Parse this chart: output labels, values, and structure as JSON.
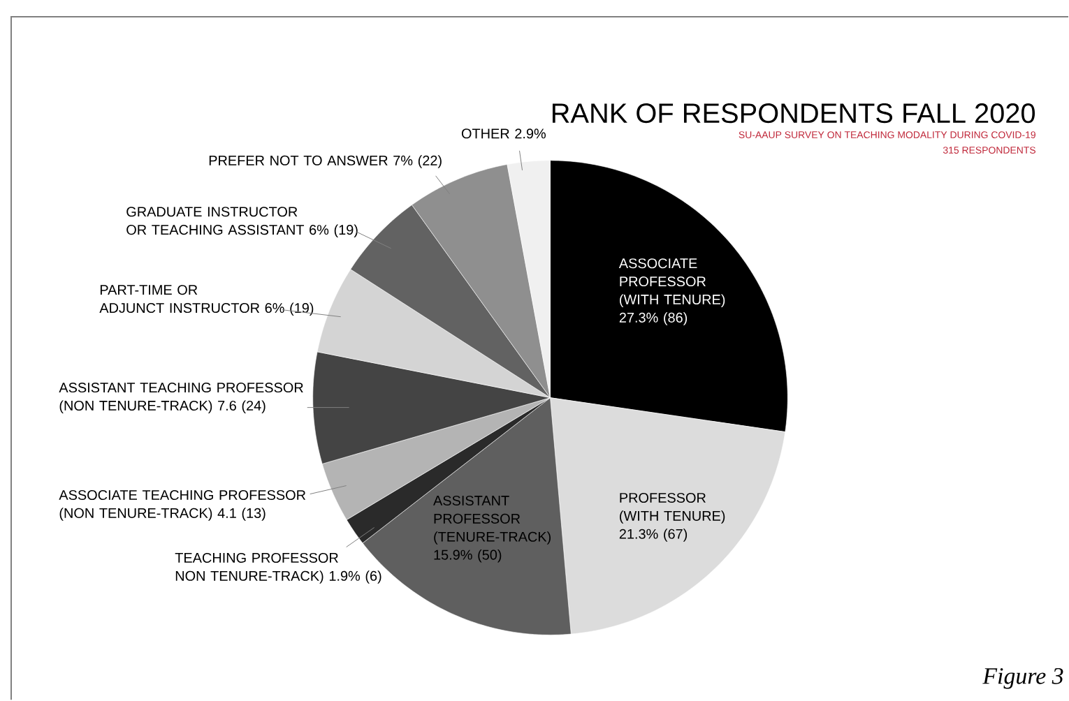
{
  "chart_data": {
    "type": "pie",
    "title": "RANK OF RESPONDENTS FALL 2020",
    "subtitle": "SU-AAUP SURVEY ON TEACHING MODALITY DURING COVID-19",
    "annotations": [
      "315 RESPONDENTS",
      "*Figure 3*"
    ],
    "categories": [
      "ASSOCIATE PROFESSOR (WITH TENURE)",
      "PROFESSOR (WITH TENURE)",
      "ASSISTANT PROFESSOR (TENURE-TRACK)",
      "TEACHING PROFESSOR NON TENURE-TRACK)",
      "ASSOCIATE TEACHING PROFESSOR (NON TENURE-TRACK)",
      "ASSISTANT TEACHING PROFESSOR (NON TENURE-TRACK)",
      "PART-TIME OR ADJUNCT INSTRUCTOR",
      "GRADUATE INSTRUCTOR OR TEACHING ASSISTANT",
      "PREFER NOT TO ANSWER",
      "OTHER"
    ],
    "values": [
      27.3,
      21.3,
      15.9,
      1.9,
      4.1,
      7.6,
      6,
      6,
      7,
      2.9
    ],
    "value_labels": [
      "27.3% (86)",
      "21.3% (67)",
      "15.9% (50)",
      "1.9% (6)",
      "4.1 (13)",
      "7.6 (24)",
      "6% (19)",
      "6% (19)",
      "7% (22)",
      "2.9%"
    ],
    "colors": [
      "#000000",
      "#dcdcdc",
      "#5f5f5f",
      "#2a2a2a",
      "#b4b4b4",
      "#444444",
      "#d4d4d4",
      "#626262",
      "#8f8f8f",
      "#f0f0f0"
    ]
  }
}
